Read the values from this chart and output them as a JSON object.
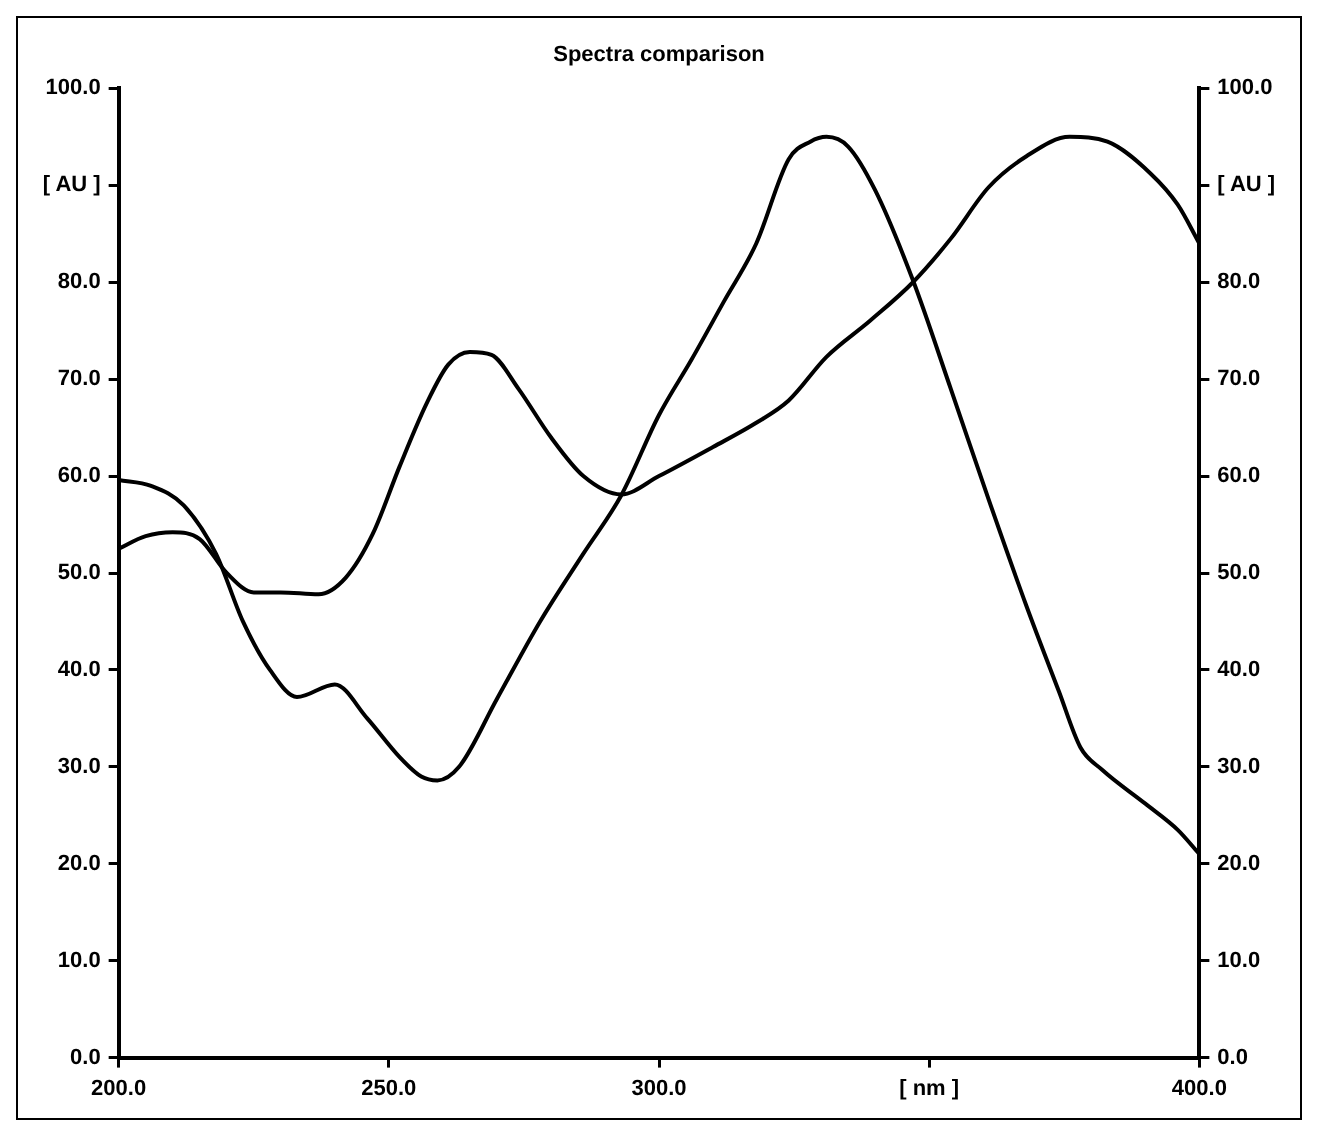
{
  "chart_data": {
    "type": "line",
    "title": "Spectra comparison",
    "xlim": [
      200,
      400
    ],
    "xticks": [
      {
        "value": 200,
        "label": "200.0"
      },
      {
        "value": 250,
        "label": "250.0"
      },
      {
        "value": 300,
        "label": "300.0"
      },
      {
        "value": 350,
        "label": "[ nm ]"
      },
      {
        "value": 400,
        "label": "400.0"
      }
    ],
    "ylim": [
      0,
      100
    ],
    "yticks": [
      {
        "value": 0,
        "label": "0.0"
      },
      {
        "value": 10,
        "label": "10.0"
      },
      {
        "value": 20,
        "label": "20.0"
      },
      {
        "value": 30,
        "label": "30.0"
      },
      {
        "value": 40,
        "label": "40.0"
      },
      {
        "value": 50,
        "label": "50.0"
      },
      {
        "value": 60,
        "label": "60.0"
      },
      {
        "value": 70,
        "label": "70.0"
      },
      {
        "value": 80,
        "label": "80.0"
      },
      {
        "value": 90,
        "label": "[ AU ]"
      },
      {
        "value": 100,
        "label": "100.0"
      }
    ],
    "y2lim": [
      0,
      100
    ],
    "y2ticks": [
      {
        "value": 0,
        "label": "0.0"
      },
      {
        "value": 10,
        "label": "10.0"
      },
      {
        "value": 20,
        "label": "20.0"
      },
      {
        "value": 30,
        "label": "30.0"
      },
      {
        "value": 40,
        "label": "40.0"
      },
      {
        "value": 50,
        "label": "50.0"
      },
      {
        "value": 60,
        "label": "60.0"
      },
      {
        "value": 70,
        "label": "70.0"
      },
      {
        "value": 80,
        "label": "80.0"
      },
      {
        "value": 90,
        "label": "[ AU ]"
      },
      {
        "value": 100,
        "label": "100.0"
      }
    ],
    "grid": false,
    "legend": false,
    "marker": "none",
    "line_style": "solid",
    "series": [
      {
        "color": "#000000",
        "x": [
          200,
          205,
          210,
          215,
          220,
          225,
          230,
          237,
          242,
          247,
          252,
          257,
          261,
          265,
          269,
          274,
          280,
          286,
          293,
          300,
          310,
          318,
          324,
          331,
          339,
          347,
          354,
          361,
          368,
          376,
          383,
          391,
          396,
          400
        ],
        "values": [
          52.5,
          53.8,
          54.2,
          53.5,
          50,
          48,
          48,
          47.8,
          49.5,
          54,
          61,
          67.5,
          71.5,
          72.8,
          72.5,
          69,
          64,
          60,
          58.1,
          60,
          63,
          65.5,
          67.8,
          72.3,
          76,
          80,
          84.5,
          89.8,
          93,
          95,
          94.5,
          91.2,
          88,
          84
        ]
      },
      {
        "color": "#000000",
        "x": [
          200,
          206,
          212,
          218,
          223,
          228,
          233,
          240,
          246,
          252,
          256,
          259,
          263,
          270,
          278,
          286,
          293,
          300,
          306,
          312,
          318,
          324,
          328,
          331,
          335,
          340,
          347,
          354,
          361,
          368,
          374,
          378,
          382,
          390,
          396,
          400
        ],
        "values": [
          59.6,
          59,
          57,
          52,
          45,
          40,
          37.2,
          38.5,
          35,
          31,
          29,
          28.6,
          30,
          37,
          45,
          52,
          58,
          66.3,
          72,
          78,
          84,
          92.7,
          94.5,
          95,
          94,
          89.5,
          80.2,
          69,
          57.6,
          46.6,
          37.8,
          32,
          29.7,
          26.2,
          23.5,
          21
        ]
      }
    ]
  }
}
